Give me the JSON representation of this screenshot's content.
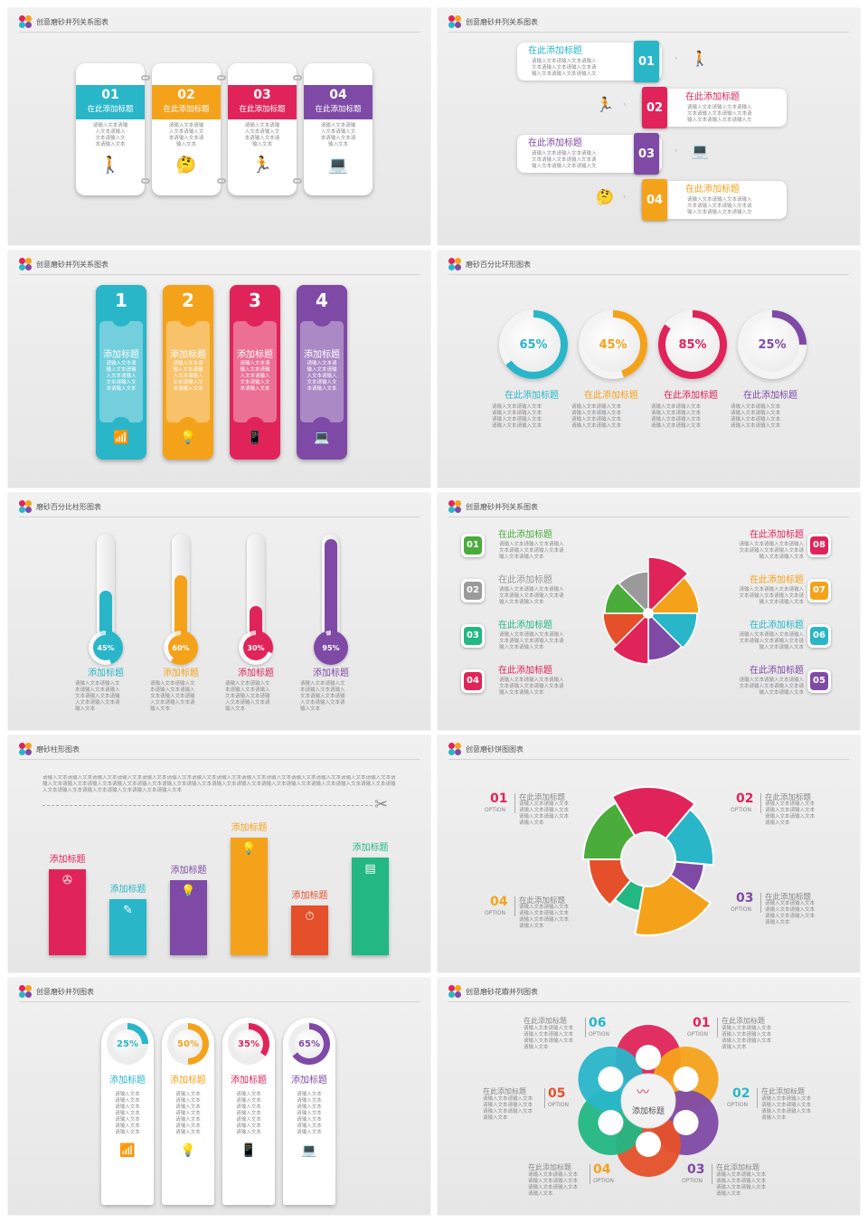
{
  "colors": {
    "teal": "#29b6c9",
    "orange": "#f5a21b",
    "crimson": "#e0245a",
    "purple": "#7f4aa6",
    "green": "#4aac3a",
    "gray": "#9a9a9a",
    "emerald": "#23b784"
  },
  "slides": {
    "s1": {
      "title": "创意磨砂并列关系图表",
      "cards": [
        {
          "num": "01",
          "heading": "在此添加标题",
          "body": "请输入文本请输\n入文本请输入\n文本请输入文\n本请输入文本",
          "icon": "person-standing-icon"
        },
        {
          "num": "02",
          "heading": "在此添加标题",
          "body": "请输入文本请输\n入文本请输入文\n本请输入文本请\n输入文本",
          "icon": "person-thinking-icon"
        },
        {
          "num": "03",
          "heading": "在此添加标题",
          "body": "请输入文本请输\n入文本请输入文\n本请输入文本请\n输入文本",
          "icon": "person-walking-icon"
        },
        {
          "num": "04",
          "heading": "在此添加标题",
          "body": "请输入文本请输\n入文本请输入文\n本请输入文本请\n输入文本",
          "icon": "person-desk-icon"
        }
      ]
    },
    "s2": {
      "title": "创意磨砂并列关系图表",
      "rows": [
        {
          "num": "01",
          "heading": "在此添加标题",
          "body": "请输入文本请输入文本请输入\n文本请输入文本请输入文本请\n输入文本请输入文本请输入文"
        },
        {
          "num": "02",
          "heading": "在此添加标题",
          "body": "请输入文本请输入文本请输入\n文本请输入文本请输入文本请\n输入文本请输入文本请输入文"
        },
        {
          "num": "03",
          "heading": "在此添加标题",
          "body": "请输入文本请输入文本请输入\n文本请输入文本请输入文本请\n输入文本请输入文本请输入文"
        },
        {
          "num": "04",
          "heading": "在此添加标题",
          "body": "请输入文本请输入文本请输入\n文本请输入文本请输入文本请\n输入文本请输入文本请输入文"
        }
      ]
    },
    "s3": {
      "title": "创意磨砂并列关系图表",
      "pieces": [
        {
          "num": "1",
          "heading": "添加标题",
          "body": "请输入文本请\n输入文本请输\n入文本请输入\n文本请输入文\n本请输入文本",
          "icon": "wifi-icon"
        },
        {
          "num": "2",
          "heading": "添加标题",
          "body": "请输入文本请\n输入文本请输\n入文本请输入\n文本请输入文\n本请输入文本",
          "icon": "lightbulb-icon"
        },
        {
          "num": "3",
          "heading": "添加标题",
          "body": "请输入文本请\n输入文本请输\n入文本请输入\n文本请输入文\n本请输入文本",
          "icon": "phone-icon"
        },
        {
          "num": "4",
          "heading": "添加标题",
          "body": "请输入文本请\n输入文本请输\n入文本请输入\n文本请输入文\n本请输入文本",
          "icon": "laptop-icon"
        }
      ]
    },
    "s4": {
      "title": "磨砂百分比环形图表",
      "rings": [
        {
          "pct": 65,
          "label": "65%",
          "heading": "在此添加标题",
          "body": "请输入文本请输入文本\n请输入文本请输入文本\n请输入文本请输入文本\n请输入文本请输入文本"
        },
        {
          "pct": 45,
          "label": "45%",
          "heading": "在此添加标题",
          "body": "请输入文本请输入文本\n请输入文本请输入文本\n请输入文本请输入文本\n请输入文本请输入文本"
        },
        {
          "pct": 85,
          "label": "85%",
          "heading": "在此添加标题",
          "body": "请输入文本请输入文本\n请输入文本请输入文本\n请输入文本请输入文本\n请输入文本请输入文本"
        },
        {
          "pct": 25,
          "label": "25%",
          "heading": "在此添加标题",
          "body": "请输入文本请输入文本\n请输入文本请输入文本\n请输入文本请输入文本\n请输入文本请输入文本"
        }
      ]
    },
    "s5": {
      "title": "磨砂百分比柱形图表",
      "bars": [
        {
          "pct": 45,
          "label": "45%",
          "heading": "添加标题",
          "body": "请输入文本请输入文\n本请输入文本请输入\n文本请输入文本请输\n入文本请输入文本请\n输入文本"
        },
        {
          "pct": 60,
          "label": "60%",
          "heading": "添加标题",
          "body": "请输入文本请输入文\n本请输入文本请输入\n文本请输入文本请输\n入文本请输入文本请\n输入文本"
        },
        {
          "pct": 30,
          "label": "30%",
          "heading": "添加标题",
          "body": "请输入文本请输入文\n本请输入文本请输入\n文本请输入文本请输\n入文本请输入文本请\n输入文本"
        },
        {
          "pct": 95,
          "label": "95%",
          "heading": "添加标题",
          "body": "请输入文本请输入文\n本请输入文本请输入\n文本请输入文本请输\n入文本请输入文本请\n输入文本"
        }
      ]
    },
    "s6": {
      "title": "创意磨砂并列关系图表",
      "left": [
        {
          "num": "01",
          "heading": "在此添加标题",
          "body": "请输入文本请输入文本请输入\n文本请输入文本请输入文本请\n输入文本请输入文本"
        },
        {
          "num": "02",
          "heading": "在此添加标题",
          "body": "请输入文本请输入文本请输入\n文本请输入文本请输入文本请\n输入文本请输入文本"
        },
        {
          "num": "03",
          "heading": "在此添加标题",
          "body": "请输入文本请输入文本请输入\n文本请输入文本请输入文本请\n输入文本请输入文本"
        },
        {
          "num": "04",
          "heading": "在此添加标题",
          "body": "请输入文本请输入文本请输入\n文本请输入文本请输入文本请\n输入文本请输入文本"
        }
      ],
      "right": [
        {
          "num": "08",
          "heading": "在此添加标题",
          "body": "请输入文本请输入文本请输入\n文本请输入文本请输入文本请\n输入文本请输入文本"
        },
        {
          "num": "07",
          "heading": "在此添加标题",
          "body": "请输入文本请输入文本请输入\n文本请输入文本请输入文本请\n输入文本请输入文本"
        },
        {
          "num": "06",
          "heading": "在此添加标题",
          "body": "请输入文本请输入文本请输入\n文本请输入文本请输入文本请\n输入文本请输入文本"
        },
        {
          "num": "05",
          "heading": "在此添加标题",
          "body": "请输入文本请输入文本请输入\n文本请输入文本请输入文本请\n输入文本请输入文本"
        }
      ]
    },
    "s7": {
      "title": "磨砂柱形图表",
      "intro": "请输入文本请输入文本请输入文本请输入文本请输入文本请输入文本请输入文本请输入文本请输入文本请输入文本请输入文本请输入文本请输入文本请输入文本请输入文本请输入文本请输入文本请输入文本请输入文本请输入文本请输入文本请输入文本请输入文本请输入文本请输入文本请输入文本请输入文本请输入文本请输入文本请输入文本请输入文本请输入文本请输入文本请输入文本",
      "bars": [
        {
          "value": 95,
          "heading": "添加标题",
          "icon": "film-reel-icon"
        },
        {
          "value": 62,
          "heading": "添加标题",
          "icon": "document-pen-icon"
        },
        {
          "value": 83,
          "heading": "添加标题",
          "icon": "lightbulb-icon"
        },
        {
          "value": 130,
          "heading": "添加标题",
          "icon": "lightbulb-icon"
        },
        {
          "value": 55,
          "heading": "添加标题",
          "icon": "stopwatch-icon"
        },
        {
          "value": 108,
          "heading": "添加标题",
          "icon": "certificate-icon"
        }
      ]
    },
    "s8": {
      "title": "创意磨砂饼图图表",
      "items": [
        {
          "num": "01",
          "option": "OPTION",
          "heading": "在此添加标题",
          "body": "请输入文本请输入文本\n请输入文本请输入文本\n请输入文本请输入文本\n请输入文本"
        },
        {
          "num": "02",
          "option": "OPTION",
          "heading": "在此添加标题",
          "body": "请输入文本请输入文本\n请输入文本请输入文本\n请输入文本请输入文本\n请输入文本"
        },
        {
          "num": "03",
          "option": "OPTION",
          "heading": "在此添加标题",
          "body": "请输入文本请输入文本\n请输入文本请输入文本\n请输入文本请输入文本\n请输入文本"
        },
        {
          "num": "04",
          "option": "OPTION",
          "heading": "在此添加标题",
          "body": "请输入文本请输入文本\n请输入文本请输入文本\n请输入文本请输入文本\n请输入文本"
        }
      ]
    },
    "s9": {
      "title": "创意磨砂并列图表",
      "cards": [
        {
          "pct": 25,
          "label": "25%",
          "heading": "添加标题",
          "body": "请输入文本\n请输入文本\n请输入文本\n请输入文本\n请输入文本\n请输入文本\n请输入文本",
          "icon": "wifi-icon"
        },
        {
          "pct": 50,
          "label": "50%",
          "heading": "添加标题",
          "body": "请输入文本\n请输入文本\n请输入文本\n请输入文本\n请输入文本\n请输入文本\n请输入文本",
          "icon": "lightbulb-icon"
        },
        {
          "pct": 35,
          "label": "35%",
          "heading": "添加标题",
          "body": "请输入文本\n请输入文本\n请输入文本\n请输入文本\n请输入文本\n请输入文本\n请输入文本",
          "icon": "phone-icon"
        },
        {
          "pct": 65,
          "label": "65%",
          "heading": "添加标题",
          "body": "请输入文本\n请输入文本\n请输入文本\n请输入文本\n请输入文本\n请输入文本\n请输入文本",
          "icon": "laptop-icon"
        }
      ]
    },
    "s10": {
      "title": "创意磨砂花瓣并列图表",
      "center": "添加标题",
      "items": [
        {
          "num": "06",
          "option": "OPTION",
          "heading": "在此添加标题",
          "body": "请输入文本请输入文本\n请输入文本请输入文本\n请输入文本请输入文本\n请输入文本"
        },
        {
          "num": "01",
          "option": "OPTION",
          "heading": "在此添加标题",
          "body": "请输入文本请输入文本\n请输入文本请输入文本\n请输入文本请输入文本\n请输入文本"
        },
        {
          "num": "05",
          "option": "OPTION",
          "heading": "在此添加标题",
          "body": "请输入文本请输入文本\n请输入文本请输入文本\n请输入文本请输入文本\n请输入文本"
        },
        {
          "num": "02",
          "option": "OPTION",
          "heading": "在此添加标题",
          "body": "请输入文本请输入文本\n请输入文本请输入文本\n请输入文本请输入文本\n请输入文本"
        },
        {
          "num": "04",
          "option": "OPTION",
          "heading": "在此添加标题",
          "body": "请输入文本请输入文本\n请输入文本请输入文本\n请输入文本请输入文本\n请输入文本"
        },
        {
          "num": "03",
          "option": "OPTION",
          "heading": "在此添加标题",
          "body": "请输入文本请输入文本\n请输入文本请输入文本\n请输入文本请输入文本\n请输入文本"
        }
      ]
    }
  }
}
